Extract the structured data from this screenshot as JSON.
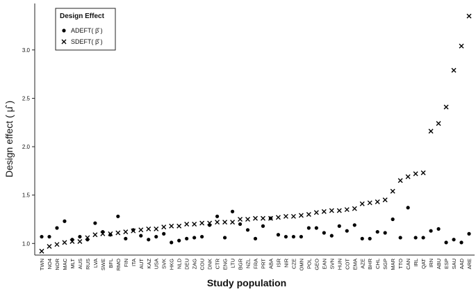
{
  "chart_data": {
    "type": "scatter",
    "y_label": "Design effect ( μ̂ )",
    "x_label": "Study population",
    "legend_title": "Design Effect",
    "legend_position": "upper left",
    "categories": [
      "TWN",
      "NO4",
      "NOR",
      "MAC",
      "MLT",
      "AUS",
      "RUS",
      "LVA",
      "SWE",
      "BFL",
      "RMO",
      "FIN",
      "ITA",
      "AUT",
      "KAZ",
      "USA",
      "SVK",
      "HKG",
      "NLD",
      "DEU",
      "ZAG",
      "COU",
      "DNK",
      "CTR",
      "ENG",
      "LTU",
      "BGR",
      "NZL",
      "FRA",
      "PRT",
      "ABA",
      "ISR",
      "NIR",
      "CZE",
      "OMN",
      "POL",
      "GEO",
      "EAN",
      "SVN",
      "HUN",
      "COT",
      "EMA",
      "AZE",
      "BHR",
      "CHL",
      "SGP",
      "MAR",
      "TTO",
      "CAN",
      "IRL",
      "QAT",
      "IRN",
      "ABU",
      "ESP",
      "SAU",
      "AAD",
      "ARE"
    ],
    "series": [
      {
        "name": "ADEFT( β̂ )",
        "marker": "dot",
        "color": "#000000",
        "values": [
          1.07,
          1.07,
          1.16,
          1.23,
          1.04,
          1.07,
          1.04,
          1.21,
          1.12,
          1.09,
          1.28,
          1.05,
          1.14,
          1.08,
          1.04,
          1.07,
          1.1,
          1.01,
          1.03,
          1.05,
          1.06,
          1.07,
          1.19,
          1.28,
          1.06,
          1.33,
          1.2,
          1.14,
          1.05,
          1.18,
          1.26,
          1.09,
          1.07,
          1.07,
          1.07,
          1.16,
          1.16,
          1.11,
          1.08,
          1.18,
          1.13,
          1.19,
          1.05,
          1.05,
          1.12,
          1.11,
          1.25,
          1.06,
          1.37,
          1.06,
          1.06,
          1.13,
          1.15,
          1.01,
          1.04,
          1.01,
          1.1
        ]
      },
      {
        "name": "SDEFT( β̂ )",
        "marker": "cross",
        "color": "#000000",
        "values": [
          0.92,
          0.97,
          0.99,
          1.01,
          1.02,
          1.02,
          1.06,
          1.09,
          1.1,
          1.1,
          1.11,
          1.12,
          1.13,
          1.14,
          1.15,
          1.15,
          1.17,
          1.18,
          1.18,
          1.2,
          1.2,
          1.21,
          1.21,
          1.22,
          1.22,
          1.22,
          1.25,
          1.25,
          1.26,
          1.26,
          1.26,
          1.27,
          1.28,
          1.28,
          1.29,
          1.3,
          1.32,
          1.33,
          1.34,
          1.34,
          1.35,
          1.36,
          1.41,
          1.42,
          1.43,
          1.45,
          1.54,
          1.65,
          1.69,
          1.72,
          1.73,
          2.16,
          2.24,
          2.41,
          2.79,
          3.04,
          3.35
        ]
      }
    ],
    "ylim": [
      0.88,
      3.48
    ],
    "yticks": [
      {
        "value": 1,
        "label": "1.0"
      },
      {
        "value": 1.5,
        "label": "1.5"
      },
      {
        "value": 2,
        "label": "2.0"
      },
      {
        "value": 2.5,
        "label": "2.5"
      },
      {
        "value": 3,
        "label": "3.0"
      }
    ],
    "grid": false
  }
}
